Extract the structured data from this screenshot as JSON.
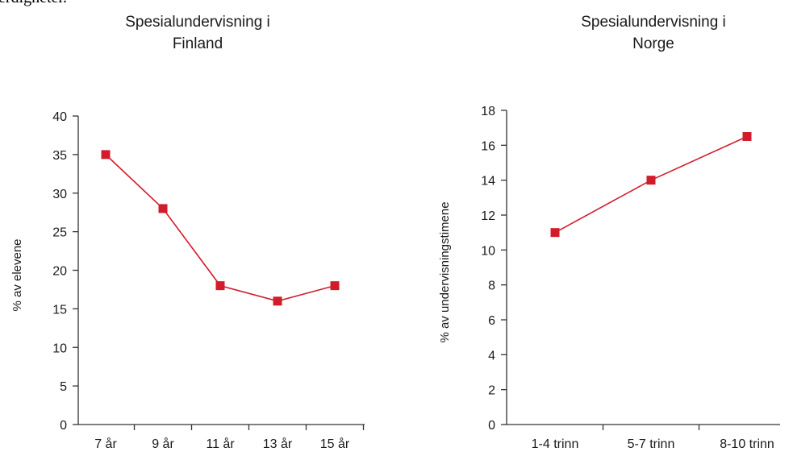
{
  "page": {
    "cut_text": "erdigheter."
  },
  "colors": {
    "series": "#d01c2b",
    "axis": "#333333"
  },
  "chart_data": [
    {
      "type": "line",
      "title": [
        "Spesialundervisning i",
        "Finland"
      ],
      "xlabel": "",
      "ylabel": "% av elevene",
      "categories": [
        "7 år",
        "9 år",
        "11 år",
        "13 år",
        "15 år"
      ],
      "series": [
        {
          "values": [
            35,
            28,
            18,
            16,
            18
          ]
        }
      ],
      "ylim": [
        0,
        40
      ],
      "yticks": [
        0,
        5,
        10,
        15,
        20,
        25,
        30,
        35,
        40
      ],
      "grid": false,
      "marker": "square"
    },
    {
      "type": "line",
      "title": [
        "Spesialundervisning i",
        "Norge"
      ],
      "xlabel": "",
      "ylabel": "% av undervisningstimene",
      "categories": [
        "1-4 trinn",
        "5-7 trinn",
        "8-10 trinn"
      ],
      "series": [
        {
          "values": [
            11,
            14,
            16.5
          ]
        }
      ],
      "ylim": [
        0,
        18
      ],
      "yticks": [
        0,
        2,
        4,
        6,
        8,
        10,
        12,
        14,
        16,
        18
      ],
      "grid": false,
      "marker": "square"
    }
  ]
}
